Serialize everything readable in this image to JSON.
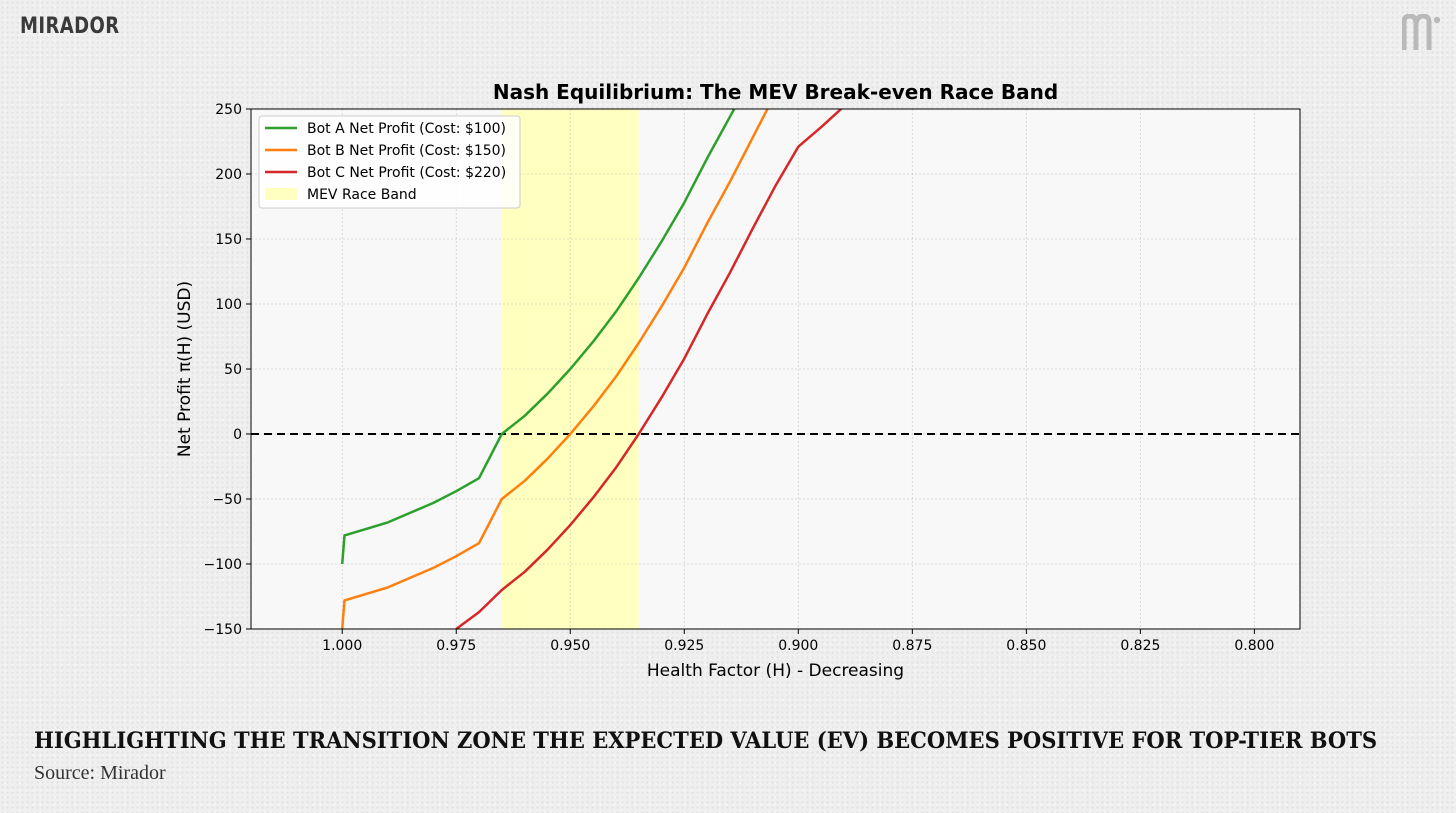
{
  "header": {
    "brand_text": "MIRADOR",
    "brand_mark_icon": "mirador-m-logo-icon"
  },
  "caption": {
    "headline": "HIGHLIGHTING THE TRANSITION ZONE THE EXPECTED VALUE (EV) BECOMES POSITIVE FOR TOP-TIER BOTS",
    "source": "Source: Mirador"
  },
  "chart_data": {
    "type": "line",
    "title": "Nash Equilibrium: The MEV Break-even Race Band",
    "xlabel": "Health Factor (H) - Decreasing",
    "ylabel": "Net Profit π(H) (USD)",
    "xlim": [
      1.02,
      0.79
    ],
    "x_inverted": true,
    "ylim": [
      -150,
      250
    ],
    "xticks": [
      1.0,
      0.975,
      0.95,
      0.925,
      0.9,
      0.875,
      0.85,
      0.825,
      0.8
    ],
    "xtick_labels": [
      "1.000",
      "0.975",
      "0.950",
      "0.925",
      "0.900",
      "0.875",
      "0.850",
      "0.825",
      "0.800"
    ],
    "yticks": [
      -150,
      -100,
      -50,
      0,
      50,
      100,
      150,
      200,
      250
    ],
    "ytick_labels": [
      "−150",
      "−100",
      "−50",
      "0",
      "50",
      "100",
      "150",
      "200",
      "250"
    ],
    "grid": true,
    "legend_position": "upper-left",
    "zero_line": {
      "y": 0,
      "style": "dashed",
      "color": "#000000"
    },
    "band": {
      "name": "MEV Race Band",
      "x_from": 0.965,
      "x_to": 0.935,
      "color": "#ffffc0"
    },
    "series": [
      {
        "name": "Bot A Net Profit (Cost: $100)",
        "color": "#2ca02c",
        "x": [
          1.0,
          0.9995,
          0.99,
          0.98,
          0.975,
          0.97,
          0.965,
          0.96,
          0.955,
          0.95,
          0.945,
          0.94,
          0.935,
          0.93,
          0.925,
          0.92,
          0.915,
          0.9125
        ],
        "y": [
          -100,
          -78,
          -68,
          -53,
          -44,
          -34,
          0,
          14,
          31,
          50,
          71,
          94,
          120,
          148,
          178,
          212,
          244,
          260
        ]
      },
      {
        "name": "Bot B Net Profit (Cost: $150)",
        "color": "#ff7f0e",
        "x": [
          1.0,
          0.9995,
          0.99,
          0.98,
          0.975,
          0.97,
          0.965,
          0.96,
          0.955,
          0.95,
          0.945,
          0.94,
          0.935,
          0.93,
          0.925,
          0.92,
          0.915,
          0.91,
          0.905
        ],
        "y": [
          -150,
          -128,
          -118,
          -103,
          -94,
          -84,
          -50,
          -36,
          -19,
          0,
          21,
          44,
          70,
          98,
          128,
          162,
          194,
          228,
          262
        ]
      },
      {
        "name": "Bot C Net Profit (Cost: $220)",
        "color": "#d62728",
        "x": [
          0.975,
          0.97,
          0.965,
          0.96,
          0.955,
          0.95,
          0.945,
          0.94,
          0.935,
          0.93,
          0.925,
          0.92,
          0.915,
          0.91,
          0.905,
          0.9,
          0.895,
          0.89
        ],
        "y": [
          -150,
          -137,
          -120,
          -106,
          -89,
          -70,
          -49,
          -26,
          0,
          28,
          58,
          92,
          124,
          158,
          191,
          221,
          236,
          252
        ]
      }
    ]
  }
}
